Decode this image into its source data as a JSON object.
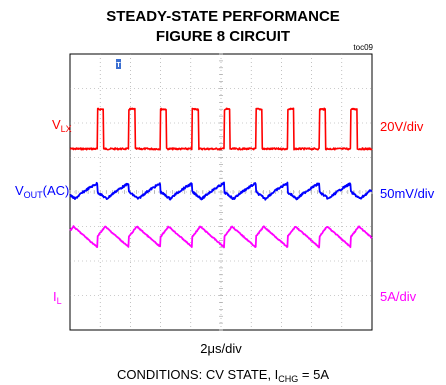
{
  "chart_data": {
    "type": "line",
    "title_line1": "STEADY-STATE PERFORMANCE",
    "title_line2": "FIGURE 8 CIRCUIT",
    "tag": "toc09",
    "trigger_marker": "T",
    "time_scale": "2μs/div",
    "conditions": {
      "prefix": "CONDITIONS: CV STATE, I",
      "sub": "CHG",
      "suffix": " = 5A"
    },
    "grid": true,
    "divisions": {
      "x": 10,
      "y": 8
    },
    "period_div": 1.05,
    "series": [
      {
        "name_main": "V",
        "name_sub": "LX",
        "name_tail": "",
        "scale": "20V/div",
        "color": "#ff0000",
        "waveform": "pulse",
        "baseline_div": 2.75,
        "pulse_height_div": 1.15,
        "pulse_width_div": 0.2,
        "first_pulse_div": 0.9
      },
      {
        "name_main": "V",
        "name_sub": "OUT",
        "name_tail": "(AC)",
        "scale": "50mV/div",
        "color": "#0000ff",
        "waveform": "ripple",
        "center_div": 4.0,
        "amplitude_div": 0.25
      },
      {
        "name_main": "I",
        "name_sub": "L",
        "name_tail": "",
        "scale": "5A/div",
        "color": "#ff00ff",
        "waveform": "sawtooth",
        "center_div": 5.3,
        "amplitude_div": 0.3
      }
    ]
  }
}
